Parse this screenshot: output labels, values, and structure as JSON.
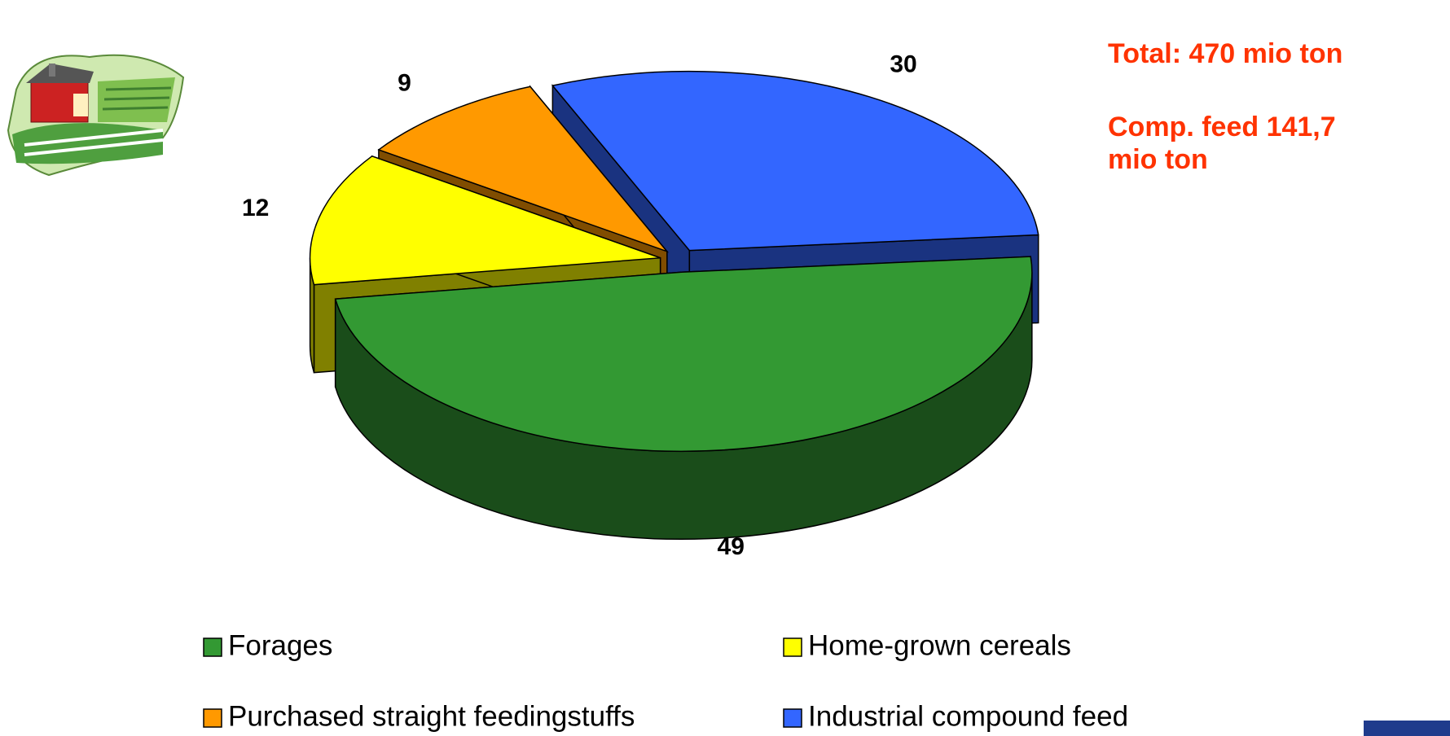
{
  "chart_data": {
    "type": "pie",
    "categories": [
      "Forages",
      "Home-grown cereals",
      "Purchased straight feedingstuffs",
      "Industrial compound feed"
    ],
    "values": [
      49,
      12,
      9,
      30
    ],
    "colors": [
      "#339933",
      "#ffff00",
      "#ff9900",
      "#3366ff"
    ],
    "annotations": [
      "Total: 470 mio ton",
      "Comp. feed 141,7 mio ton"
    ]
  }
}
